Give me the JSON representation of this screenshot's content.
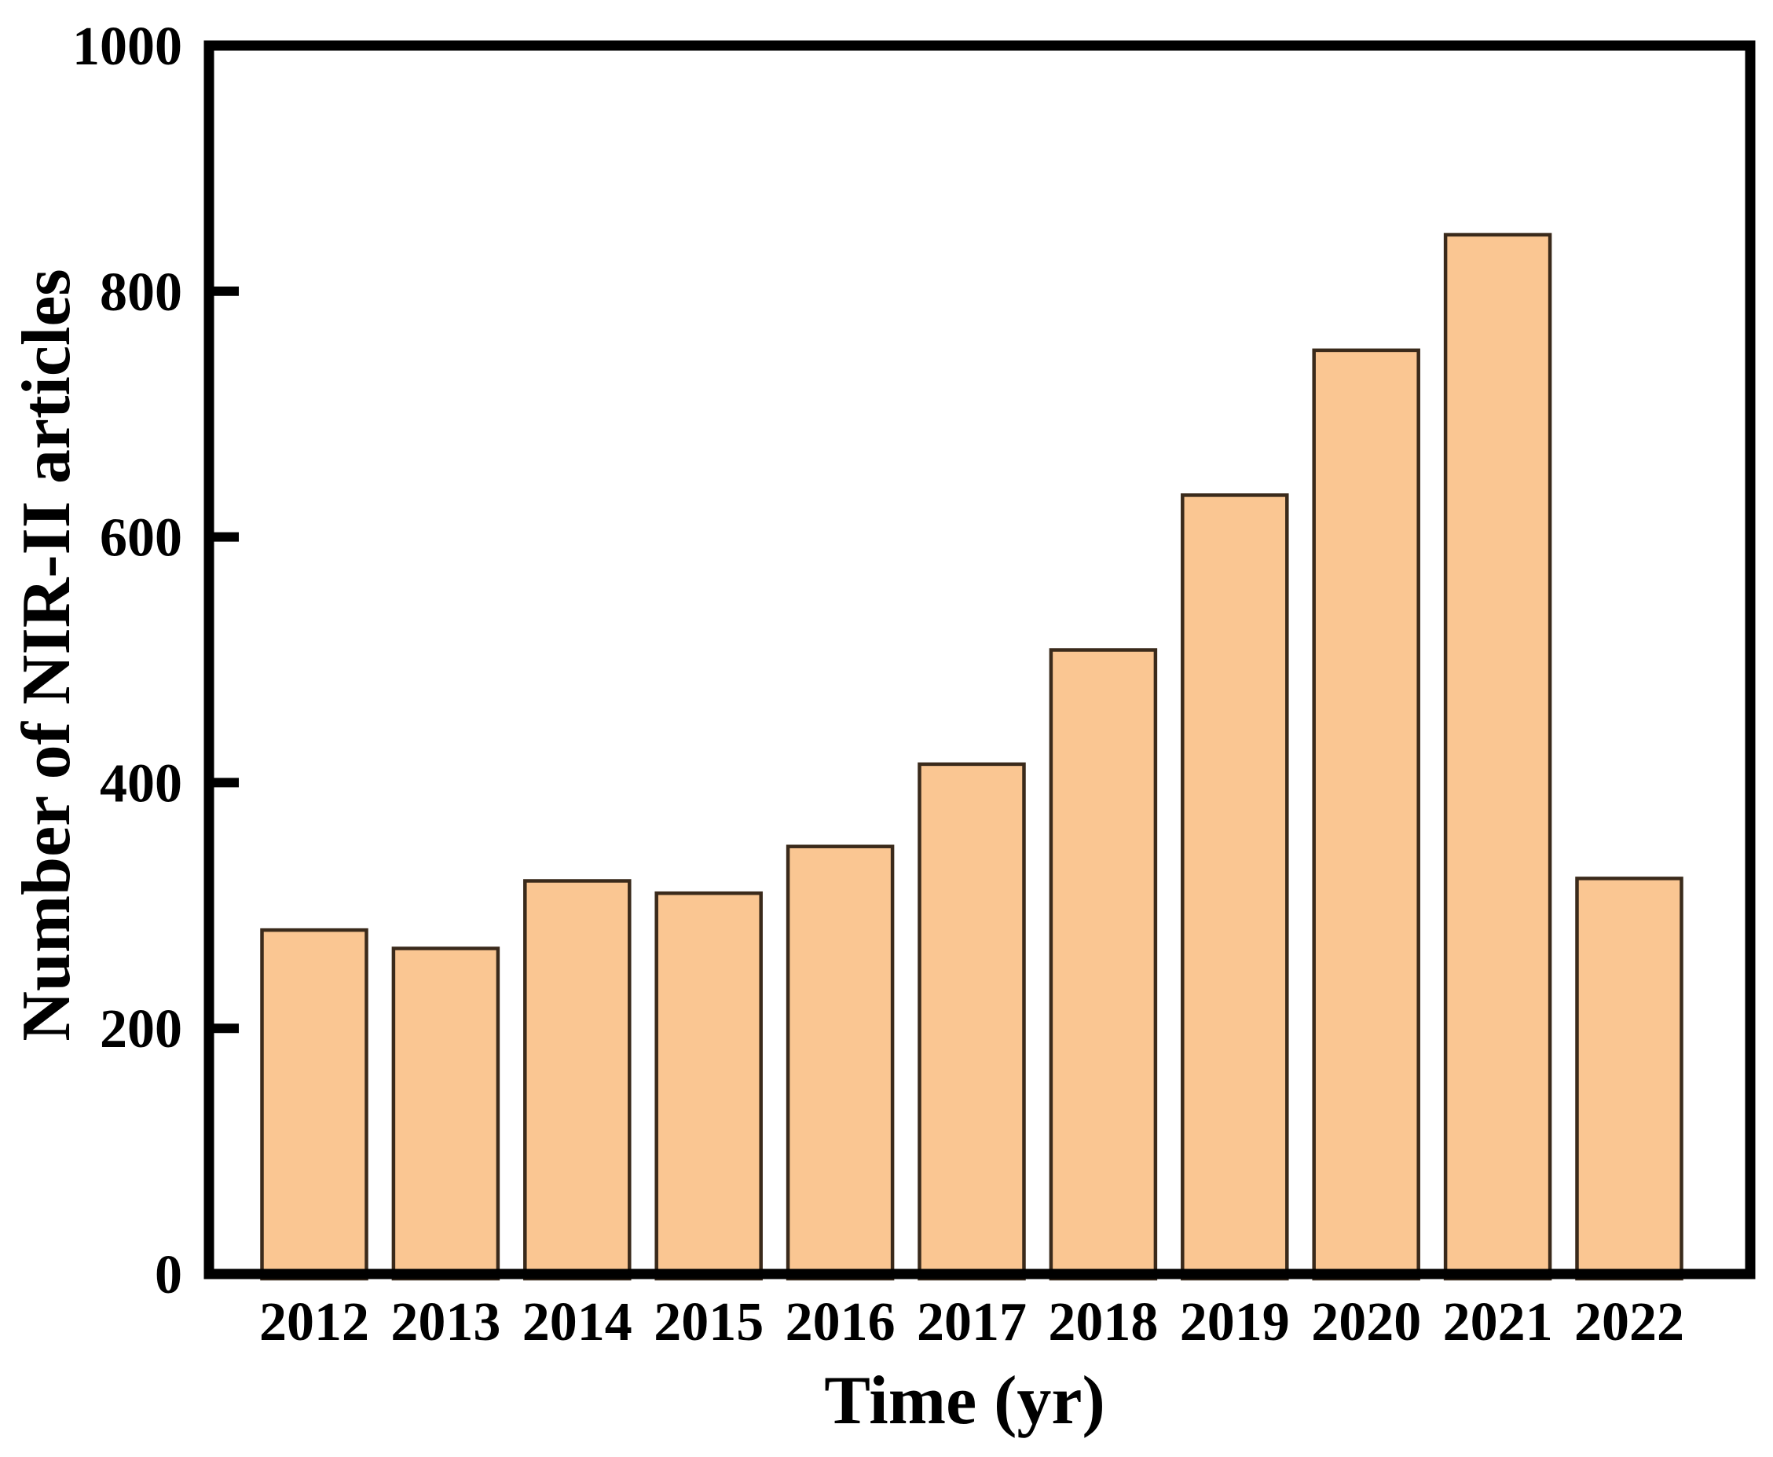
{
  "figure": {
    "background_color": "#ffffff",
    "axis_color": "#000000",
    "text_color": "#000000",
    "bar_fill_color": "#fac692",
    "bar_border_color": "#3a2a1b"
  },
  "chart_data": {
    "type": "bar",
    "title": "",
    "xlabel": "Time (yr)",
    "ylabel": "Number of NIR-II articles",
    "categories": [
      "2012",
      "2013",
      "2014",
      "2015",
      "2016",
      "2017",
      "2018",
      "2019",
      "2020",
      "2021",
      "2022"
    ],
    "values": [
      280,
      265,
      320,
      310,
      348,
      415,
      508,
      634,
      752,
      846,
      322
    ],
    "ylim": [
      0,
      1000
    ],
    "y_ticks": [
      0,
      200,
      400,
      600,
      800,
      1000
    ],
    "grid": false,
    "legend": "none"
  }
}
